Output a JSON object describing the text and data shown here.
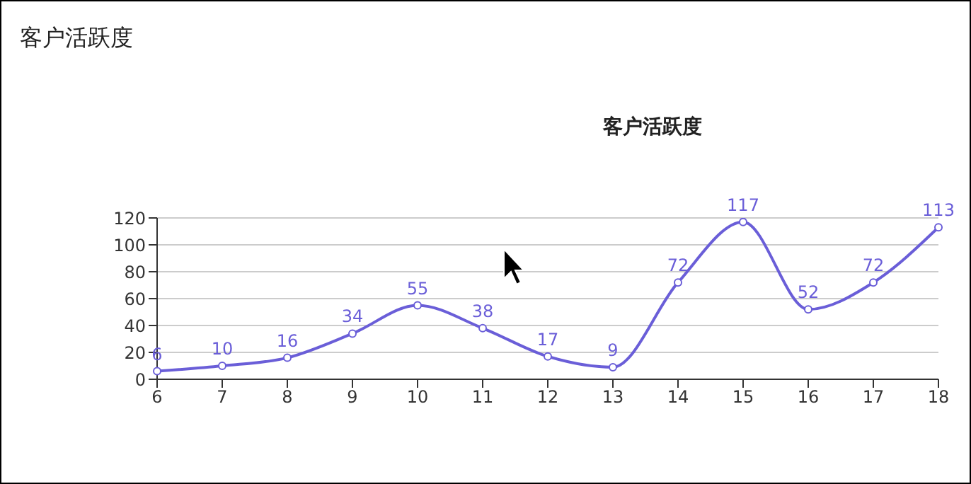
{
  "chart_data": {
    "type": "line",
    "title": "客户活跃度",
    "subtitle": "客户活跃度",
    "categories": [
      "6",
      "7",
      "8",
      "9",
      "10",
      "11",
      "12",
      "13",
      "14",
      "15",
      "16",
      "17",
      "18"
    ],
    "series": [
      {
        "color": "#6a5ed8",
        "values": [
          6,
          10,
          16,
          34,
          55,
          38,
          17,
          9,
          72,
          117,
          52,
          72,
          113
        ]
      }
    ],
    "ylim": [
      0,
      120
    ],
    "yticks": [
      0,
      20,
      40,
      60,
      80,
      100,
      120
    ],
    "grid": "y",
    "marker": "circle",
    "data_labels": true,
    "legend": false
  }
}
